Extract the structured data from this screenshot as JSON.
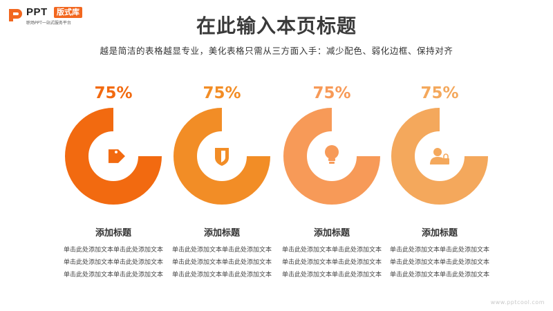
{
  "header": {
    "logo_text": "PPT",
    "logo_badge": "版式库",
    "logo_tagline": "职场PPT一站式服务平台",
    "title": "在此输入本页标题",
    "subtitle": "越是简洁的表格越显专业，美化表格只需从三方面入手：减少配色、弱化边框、保持对齐"
  },
  "items": [
    {
      "percent_label": "75%",
      "percent": 75,
      "color": "#f26a10",
      "icon": "tag-icon",
      "title": "添加标题",
      "desc": "单击此处添加文本单击此处添加文本单击此处添加文本单击此处添加文本单击此处添加文本单击此处添加文本"
    },
    {
      "percent_label": "75%",
      "percent": 75,
      "color": "#f28d26",
      "icon": "shield-icon",
      "title": "添加标题",
      "desc": "单击此处添加文本单击此处添加文本单击此处添加文本单击此处添加文本单击此处添加文本单击此处添加文本"
    },
    {
      "percent_label": "75%",
      "percent": 75,
      "color": "#f79a58",
      "icon": "lightbulb-icon",
      "title": "添加标题",
      "desc": "单击此处添加文本单击此处添加文本单击此处添加文本单击此处添加文本单击此处添加文本单击此处添加文本"
    },
    {
      "percent_label": "75%",
      "percent": 75,
      "color": "#f4a85c",
      "icon": "user-lock-icon",
      "title": "添加标题",
      "desc": "单击此处添加文本单击此处添加文本单击此处添加文本单击此处添加文本单击此处添加文本单击此处添加文本"
    }
  ],
  "watermark": "www.pptcool.com"
}
